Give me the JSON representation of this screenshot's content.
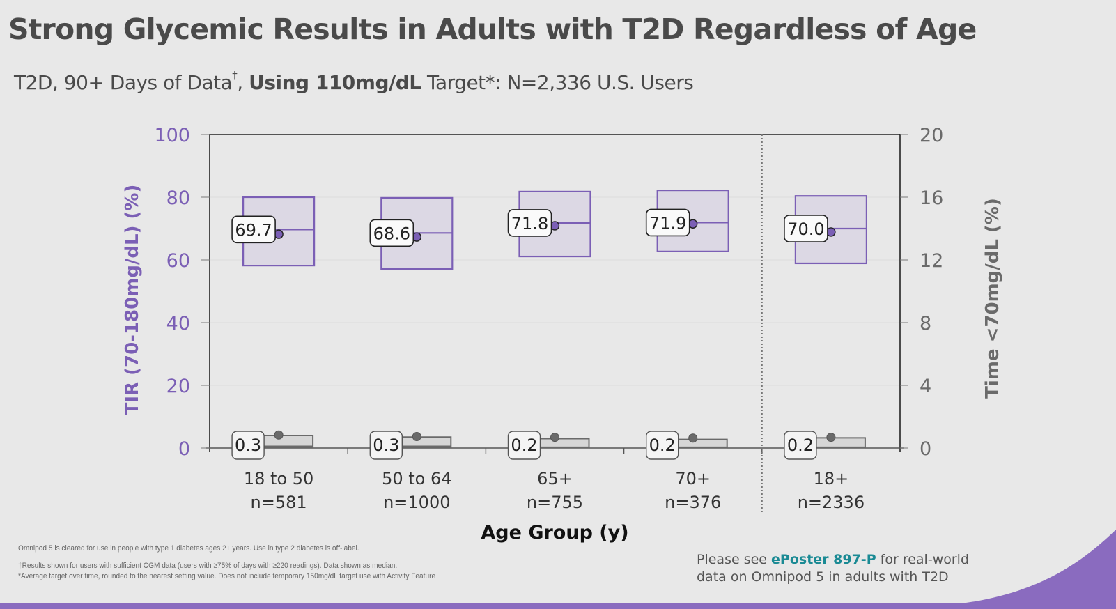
{
  "slide": {
    "title": "Strong Glycemic Results in Adults with T2D Regardless of Age",
    "subtitle": {
      "part1": "T2D, 90+ Days of Data",
      "dagger": "†",
      "part2": ", ",
      "bold": "Using 110mg/dL",
      "part3": " Target*: N=2,336 U.S. Users"
    },
    "footnotes": [
      "Omnipod 5 is cleared for use in people with type 1 diabetes ages 2+ years. Use in type 2 diabetes is off-label.",
      "†Results shown for users with sufficient CGM data (users with ≥75% of days with ≥220 readings). Data shown as median.",
      "*Average target over time, rounded to the nearest setting value. Does not include temporary 150mg/dL target use with Activity Feature"
    ],
    "eposter": {
      "prefix": "Please see ",
      "highlight": "ePoster 897-P",
      "suffix": " for real-world",
      "line2": "data on Omnipod 5 in adults with T2D"
    },
    "colors": {
      "tir_accent": "#7b5fb5",
      "tir_box_fill": "#dcd8e4",
      "tbr_gray": "#6a6a6a",
      "tbr_box_fill": "#d6d6d6",
      "link_teal": "#1a8a94",
      "brand_purple": "#8a6bbf",
      "background": "#e8e8e8"
    }
  },
  "chart_data": {
    "type": "box",
    "title": "",
    "xlabel": "Age Group (y)",
    "ylabel_left": "TIR (70-180mg/dL) (%)",
    "ylabel_right": "Time <70mg/dL (%)",
    "ylim_left": [
      0,
      100
    ],
    "ylim_right": [
      0,
      20
    ],
    "yticks_left": [
      0,
      20,
      40,
      60,
      80,
      100
    ],
    "yticks_right": [
      0,
      4,
      8,
      12,
      16,
      20
    ],
    "grid": true,
    "separator_before_index": 4,
    "categories": [
      {
        "label": "18 to 50",
        "n": "n=581"
      },
      {
        "label": "50 to 64",
        "n": "n=1000"
      },
      {
        "label": "65+",
        "n": "n=755"
      },
      {
        "label": "70+",
        "n": "n=376"
      },
      {
        "label": "18+",
        "n": "n=2336"
      }
    ],
    "series": [
      {
        "name": "TIR (70-180mg/dL)",
        "axis": "left",
        "median": [
          69.7,
          68.6,
          71.8,
          71.9,
          70.0
        ],
        "median_labels": [
          "69.7",
          "68.6",
          "71.8",
          "71.9",
          "70.0"
        ],
        "q1": [
          58.2,
          57.1,
          61.1,
          62.7,
          58.9
        ],
        "q3": [
          80.0,
          79.8,
          81.8,
          82.2,
          80.4
        ],
        "mean": [
          68.2,
          67.3,
          70.9,
          71.5,
          68.9
        ]
      },
      {
        "name": "Time <70mg/dL",
        "axis": "right",
        "median": [
          0.3,
          0.3,
          0.2,
          0.2,
          0.2
        ],
        "median_labels": [
          "0.3",
          "0.3",
          "0.2",
          "0.2",
          "0.2"
        ],
        "q1": [
          0.05,
          0.05,
          0.05,
          0.05,
          0.05
        ],
        "q3": [
          0.8,
          0.7,
          0.6,
          0.55,
          0.65
        ],
        "mean": [
          0.7,
          0.6,
          0.55,
          0.5,
          0.55
        ]
      }
    ]
  }
}
